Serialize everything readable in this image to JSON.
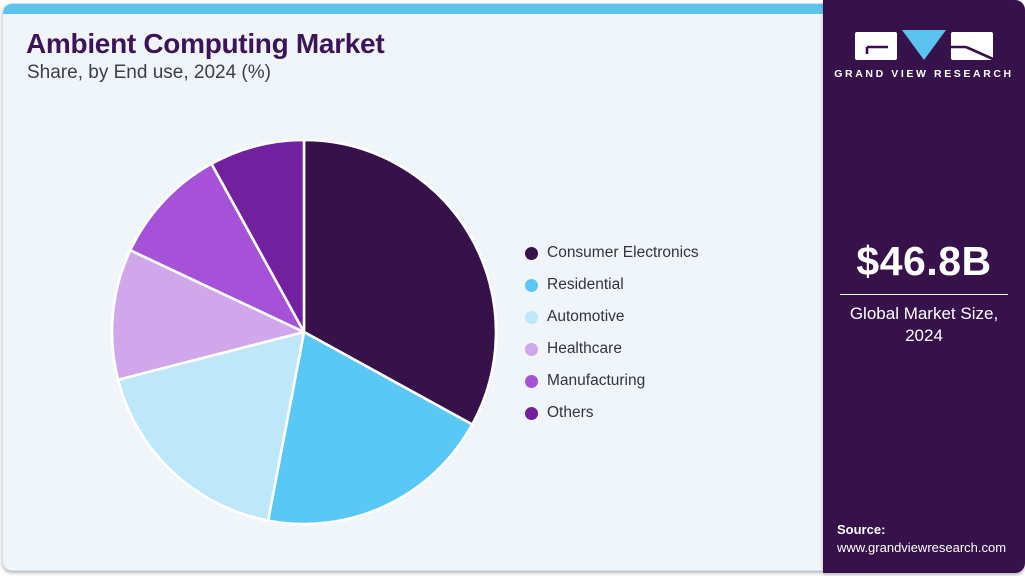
{
  "header": {
    "title": "Ambient Computing Market",
    "subtitle": "Share, by End use, 2024 (%)"
  },
  "chart_data": {
    "type": "pie",
    "title": "Ambient Computing Market Share, by End use, 2024 (%)",
    "unit": "%",
    "start_angle_deg": 0,
    "direction": "clockwise",
    "categories": [
      "Consumer Electronics",
      "Residential",
      "Automotive",
      "Healthcare",
      "Manufacturing",
      "Others"
    ],
    "values": [
      33,
      20,
      18,
      11,
      10,
      8
    ],
    "colors": [
      "#36114A",
      "#5AC8F5",
      "#BFE7FA",
      "#D0A7EA",
      "#A551D8",
      "#71219E"
    ],
    "legend_position": "right",
    "slice_border_color": "#FFFFFF"
  },
  "sidebar": {
    "logo_text": "GRAND VIEW RESEARCH",
    "market_size_value": "$46.8B",
    "market_size_label_line1": "Global Market Size,",
    "market_size_label_line2": "2024",
    "source_label": "Source:",
    "source_url": "www.grandviewresearch.com"
  },
  "colors": {
    "accent_bar": "#5BC3EE",
    "card_background": "#F0F5FA",
    "sidebar_background": "#36114A",
    "title": "#3E1459",
    "logo_triangle": "#5BC3EE"
  }
}
